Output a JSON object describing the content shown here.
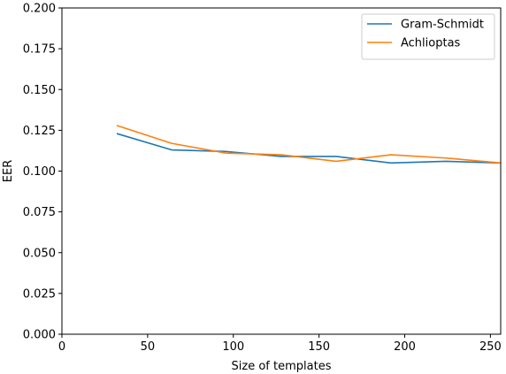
{
  "chart_data": {
    "type": "line",
    "title": "",
    "xlabel": "Size of templates",
    "ylabel": "EER",
    "xlim": [
      0,
      256
    ],
    "ylim": [
      0,
      0.2
    ],
    "xticks": [
      0,
      50,
      100,
      150,
      200,
      250
    ],
    "xtick_labels": [
      "0",
      "50",
      "100",
      "150",
      "200",
      "250"
    ],
    "yticks": [
      0,
      0.025,
      0.05,
      0.075,
      0.1,
      0.125,
      0.15,
      0.175,
      0.2
    ],
    "ytick_labels": [
      "0.000",
      "0.025",
      "0.050",
      "0.075",
      "0.100",
      "0.125",
      "0.150",
      "0.175",
      "0.200"
    ],
    "grid": false,
    "legend_position": "top-right",
    "x": [
      32,
      64,
      96,
      128,
      160,
      192,
      224,
      256
    ],
    "series": [
      {
        "name": "Gram-Schmidt",
        "color": "#1f77b4",
        "values": [
          0.123,
          0.113,
          0.112,
          0.109,
          0.109,
          0.105,
          0.106,
          0.105
        ]
      },
      {
        "name": "Achlioptas",
        "color": "#ff7f0e",
        "values": [
          0.128,
          0.117,
          0.111,
          0.11,
          0.106,
          0.11,
          0.108,
          0.105
        ]
      }
    ]
  }
}
